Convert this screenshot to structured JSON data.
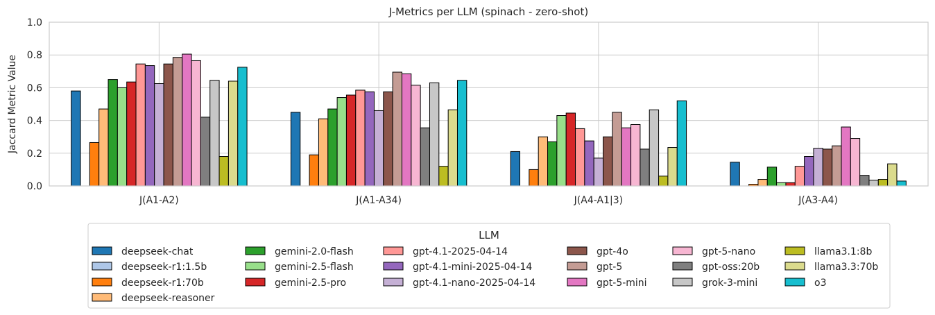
{
  "chart_data": {
    "type": "bar",
    "title": "J-Metrics per LLM (spinach - zero-shot)",
    "xlabel": "",
    "ylabel": "Jaccard Metric Value",
    "ylim": [
      0,
      1.0
    ],
    "yticks": [
      "0.0",
      "0.2",
      "0.4",
      "0.6",
      "0.8",
      "1.0"
    ],
    "grid": true,
    "legend_title": "LLM",
    "legend_position": "bottom-center",
    "categories": [
      "J(A1-A2)",
      "J(A1-A34)",
      "J(A4-A1|3)",
      "J(A3-A4)"
    ],
    "series": [
      {
        "name": "deepseek-chat",
        "color": "#1f77b4",
        "values": [
          0.58,
          0.45,
          0.21,
          0.145
        ]
      },
      {
        "name": "deepseek-r1:1.5b",
        "color": "#aec7e8",
        "values": [
          0,
          0,
          0,
          0
        ]
      },
      {
        "name": "deepseek-r1:70b",
        "color": "#ff7f0e",
        "values": [
          0.265,
          0.19,
          0.1,
          0.01
        ]
      },
      {
        "name": "deepseek-reasoner",
        "color": "#ffbb78",
        "values": [
          0.47,
          0.41,
          0.3,
          0.04
        ]
      },
      {
        "name": "gemini-2.0-flash",
        "color": "#2ca02c",
        "values": [
          0.65,
          0.47,
          0.27,
          0.115
        ]
      },
      {
        "name": "gemini-2.5-flash",
        "color": "#98df8a",
        "values": [
          0.6,
          0.54,
          0.43,
          0.02
        ]
      },
      {
        "name": "gemini-2.5-pro",
        "color": "#d62728",
        "values": [
          0.635,
          0.555,
          0.445,
          0.02
        ]
      },
      {
        "name": "gpt-4.1-2025-04-14",
        "color": "#ff9896",
        "values": [
          0.745,
          0.585,
          0.35,
          0.12
        ]
      },
      {
        "name": "gpt-4.1-mini-2025-04-14",
        "color": "#9467bd",
        "values": [
          0.735,
          0.575,
          0.275,
          0.18
        ]
      },
      {
        "name": "gpt-4.1-nano-2025-04-14",
        "color": "#c5b0d5",
        "values": [
          0.625,
          0.46,
          0.17,
          0.23
        ]
      },
      {
        "name": "gpt-4o",
        "color": "#8c564b",
        "values": [
          0.745,
          0.575,
          0.3,
          0.225
        ]
      },
      {
        "name": "gpt-5",
        "color": "#c49c94",
        "values": [
          0.785,
          0.695,
          0.45,
          0.245
        ]
      },
      {
        "name": "gpt-5-mini",
        "color": "#e377c2",
        "values": [
          0.805,
          0.685,
          0.355,
          0.36
        ]
      },
      {
        "name": "gpt-5-nano",
        "color": "#f7b6d2",
        "values": [
          0.765,
          0.615,
          0.375,
          0.29
        ]
      },
      {
        "name": "gpt-oss:20b",
        "color": "#7f7f7f",
        "values": [
          0.42,
          0.355,
          0.225,
          0.065
        ]
      },
      {
        "name": "grok-3-mini",
        "color": "#c7c7c7",
        "values": [
          0.645,
          0.63,
          0.465,
          0.035
        ]
      },
      {
        "name": "llama3.1:8b",
        "color": "#bcbd22",
        "values": [
          0.18,
          0.12,
          0.06,
          0.04
        ]
      },
      {
        "name": "llama3.3:70b",
        "color": "#dbdb8d",
        "values": [
          0.64,
          0.465,
          0.235,
          0.135
        ]
      },
      {
        "name": "o3",
        "color": "#17becf",
        "values": [
          0.725,
          0.645,
          0.52,
          0.03
        ]
      }
    ]
  }
}
